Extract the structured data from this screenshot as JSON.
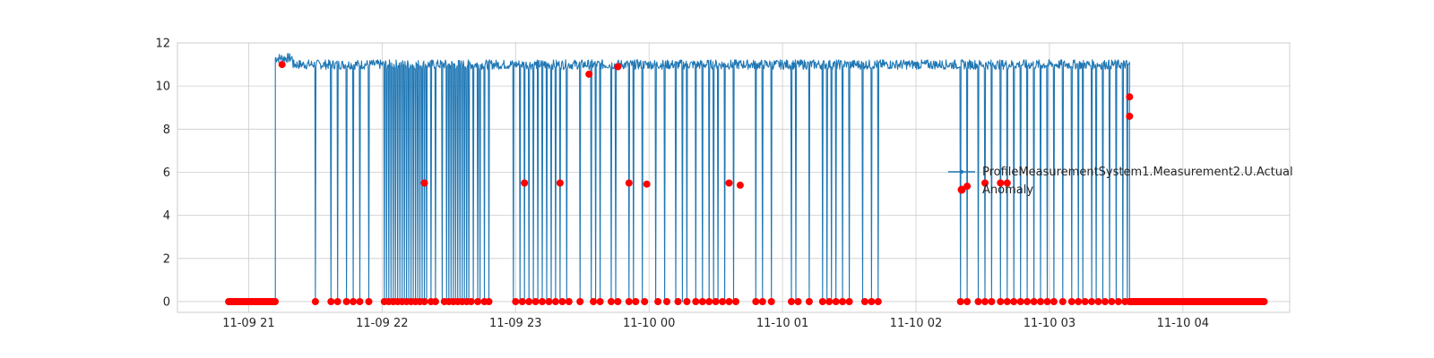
{
  "chart_data": {
    "type": "line",
    "title": "",
    "xlabel": "",
    "ylabel": "",
    "x_axis": {
      "type": "datetime",
      "range": [
        "2024-11-09 20:28",
        "2024-11-10 04:48"
      ],
      "ticks": [
        {
          "value": "2024-11-09 21:00",
          "label": "11-09 21"
        },
        {
          "value": "2024-11-09 22:00",
          "label": "11-09 22"
        },
        {
          "value": "2024-11-09 23:00",
          "label": "11-09 23"
        },
        {
          "value": "2024-11-10 00:00",
          "label": "11-10 00"
        },
        {
          "value": "2024-11-10 01:00",
          "label": "11-10 01"
        },
        {
          "value": "2024-11-10 02:00",
          "label": "11-10 02"
        },
        {
          "value": "2024-11-10 03:00",
          "label": "11-10 03"
        },
        {
          "value": "2024-11-10 04:00",
          "label": "11-10 04"
        }
      ]
    },
    "y_axis": {
      "range": [
        -0.5,
        12
      ],
      "ticks": [
        0,
        2,
        4,
        6,
        8,
        10,
        12
      ]
    },
    "grid": true,
    "legend": {
      "position": "center-right",
      "entries": [
        {
          "label": "ProfileMeasurementSystem1.Measurement2.U.Actual",
          "color": "#1f77b4",
          "marker": "line"
        },
        {
          "label": "Anomaly",
          "color": "#ff0000",
          "marker": "dot"
        }
      ]
    },
    "series": [
      {
        "name": "ProfileMeasurementSystem1.Measurement2.U.Actual",
        "color": "#1f77b4",
        "baseline_start": "2024-11-09 21:12",
        "baseline_end": "2024-11-10 03:36",
        "baseline_level": 11.0,
        "drops_to_zero_at": [
          "2024-11-09 21:30",
          "2024-11-09 21:37",
          "2024-11-09 21:40",
          "2024-11-09 21:44",
          "2024-11-09 21:47",
          "2024-11-09 21:50",
          "2024-11-09 21:54",
          "2024-11-09 22:01",
          "2024-11-09 22:02",
          "2024-11-09 22:03",
          "2024-11-09 22:04",
          "2024-11-09 22:05",
          "2024-11-09 22:06",
          "2024-11-09 22:07",
          "2024-11-09 22:08",
          "2024-11-09 22:09",
          "2024-11-09 22:10",
          "2024-11-09 22:11",
          "2024-11-09 22:12",
          "2024-11-09 22:13",
          "2024-11-09 22:14",
          "2024-11-09 22:15",
          "2024-11-09 22:16",
          "2024-11-09 22:17",
          "2024-11-09 22:18",
          "2024-11-09 22:19",
          "2024-11-09 22:20",
          "2024-11-09 22:22",
          "2024-11-09 22:24",
          "2024-11-09 22:27",
          "2024-11-09 22:29",
          "2024-11-09 22:30",
          "2024-11-09 22:31",
          "2024-11-09 22:32",
          "2024-11-09 22:33",
          "2024-11-09 22:34",
          "2024-11-09 22:35",
          "2024-11-09 22:36",
          "2024-11-09 22:37",
          "2024-11-09 22:38",
          "2024-11-09 22:39",
          "2024-11-09 22:41",
          "2024-11-09 22:43",
          "2024-11-09 22:44",
          "2024-11-09 22:46",
          "2024-11-09 22:48",
          "2024-11-09 22:59",
          "2024-11-09 23:02",
          "2024-11-09 23:04",
          "2024-11-09 23:06",
          "2024-11-09 23:08",
          "2024-11-09 23:10",
          "2024-11-09 23:12",
          "2024-11-09 23:14",
          "2024-11-09 23:16",
          "2024-11-09 23:18",
          "2024-11-09 23:20",
          "2024-11-09 23:23",
          "2024-11-09 23:29",
          "2024-11-09 23:34",
          "2024-11-09 23:36",
          "2024-11-09 23:38",
          "2024-11-09 23:43",
          "2024-11-09 23:45",
          "2024-11-09 23:51",
          "2024-11-09 23:53",
          "2024-11-09 23:57",
          "2024-11-10 00:03",
          "2024-11-10 00:07",
          "2024-11-10 00:12",
          "2024-11-10 00:15",
          "2024-11-10 00:17",
          "2024-11-10 00:21",
          "2024-11-10 00:24",
          "2024-11-10 00:27",
          "2024-11-10 00:29",
          "2024-11-10 00:31",
          "2024-11-10 00:34",
          "2024-11-10 00:38",
          "2024-11-10 00:48",
          "2024-11-10 00:51",
          "2024-11-10 00:55",
          "2024-11-10 01:04",
          "2024-11-10 01:06",
          "2024-11-10 01:12",
          "2024-11-10 01:18",
          "2024-11-10 01:20",
          "2024-11-10 01:22",
          "2024-11-10 01:24",
          "2024-11-10 01:27",
          "2024-11-10 01:30",
          "2024-11-10 01:36",
          "2024-11-10 01:40",
          "2024-11-10 01:43",
          "2024-11-10 02:20",
          "2024-11-10 02:23",
          "2024-11-10 02:28",
          "2024-11-10 02:31",
          "2024-11-10 02:34",
          "2024-11-10 02:38",
          "2024-11-10 02:41",
          "2024-11-10 02:44",
          "2024-11-10 02:47",
          "2024-11-10 02:50",
          "2024-11-10 02:53",
          "2024-11-10 02:56",
          "2024-11-10 02:59",
          "2024-11-10 03:02",
          "2024-11-10 03:06",
          "2024-11-10 03:10",
          "2024-11-10 03:13",
          "2024-11-10 03:15",
          "2024-11-10 03:19",
          "2024-11-10 03:21",
          "2024-11-10 03:24",
          "2024-11-10 03:27",
          "2024-11-10 03:30",
          "2024-11-10 03:33",
          "2024-11-10 03:35"
        ]
      },
      {
        "name": "Anomaly",
        "type": "scatter",
        "color": "#ff0000",
        "zero_runs": [
          [
            "2024-11-09 20:51",
            "2024-11-09 21:12"
          ],
          [
            "2024-11-10 03:36",
            "2024-11-10 04:37"
          ]
        ],
        "points": [
          [
            "2024-11-09 21:15",
            11.0
          ],
          [
            "2024-11-09 22:19",
            5.5
          ],
          [
            "2024-11-09 23:04",
            5.5
          ],
          [
            "2024-11-09 23:20",
            5.5
          ],
          [
            "2024-11-09 23:33",
            10.55
          ],
          [
            "2024-11-09 23:51",
            5.5
          ],
          [
            "2024-11-09 23:46",
            10.9
          ],
          [
            "2024-11-09 23:59",
            5.45
          ],
          [
            "2024-11-10 00:36",
            5.5
          ],
          [
            "2024-11-10 00:41",
            5.4
          ],
          [
            "2024-11-10 02:23",
            5.35
          ],
          [
            "2024-11-10 02:31",
            5.5
          ],
          [
            "2024-11-10 02:38",
            5.5
          ],
          [
            "2024-11-10 02:41",
            5.5
          ],
          [
            "2024-11-10 03:36",
            9.5
          ],
          [
            "2024-11-10 03:36",
            8.6
          ],
          [
            "2024-11-09 21:30",
            0
          ],
          [
            "2024-11-09 21:37",
            0
          ],
          [
            "2024-11-09 21:40",
            0
          ],
          [
            "2024-11-09 21:44",
            0
          ],
          [
            "2024-11-09 21:47",
            0
          ],
          [
            "2024-11-09 21:50",
            0
          ],
          [
            "2024-11-09 21:54",
            0
          ],
          [
            "2024-11-09 22:01",
            0
          ],
          [
            "2024-11-09 22:03",
            0
          ],
          [
            "2024-11-09 22:05",
            0
          ],
          [
            "2024-11-09 22:07",
            0
          ],
          [
            "2024-11-09 22:09",
            0
          ],
          [
            "2024-11-09 22:11",
            0
          ],
          [
            "2024-11-09 22:13",
            0
          ],
          [
            "2024-11-09 22:15",
            0
          ],
          [
            "2024-11-09 22:17",
            0
          ],
          [
            "2024-11-09 22:19",
            0
          ],
          [
            "2024-11-09 22:22",
            0
          ],
          [
            "2024-11-09 22:24",
            0
          ],
          [
            "2024-11-09 22:28",
            0
          ],
          [
            "2024-11-09 22:30",
            0
          ],
          [
            "2024-11-09 22:32",
            0
          ],
          [
            "2024-11-09 22:34",
            0
          ],
          [
            "2024-11-09 22:36",
            0
          ],
          [
            "2024-11-09 22:38",
            0
          ],
          [
            "2024-11-09 22:40",
            0
          ],
          [
            "2024-11-09 22:43",
            0
          ],
          [
            "2024-11-09 22:46",
            0
          ],
          [
            "2024-11-09 22:48",
            0
          ],
          [
            "2024-11-09 23:00",
            0
          ],
          [
            "2024-11-09 23:03",
            0
          ],
          [
            "2024-11-09 23:06",
            0
          ],
          [
            "2024-11-09 23:09",
            0
          ],
          [
            "2024-11-09 23:12",
            0
          ],
          [
            "2024-11-09 23:15",
            0
          ],
          [
            "2024-11-09 23:18",
            0
          ],
          [
            "2024-11-09 23:21",
            0
          ],
          [
            "2024-11-09 23:24",
            0
          ],
          [
            "2024-11-09 23:29",
            0
          ],
          [
            "2024-11-09 23:35",
            0
          ],
          [
            "2024-11-09 23:38",
            0
          ],
          [
            "2024-11-09 23:43",
            0
          ],
          [
            "2024-11-09 23:46",
            0
          ],
          [
            "2024-11-09 23:51",
            0
          ],
          [
            "2024-11-09 23:54",
            0
          ],
          [
            "2024-11-09 23:58",
            0
          ],
          [
            "2024-11-10 00:04",
            0
          ],
          [
            "2024-11-10 00:08",
            0
          ],
          [
            "2024-11-10 00:13",
            0
          ],
          [
            "2024-11-10 00:17",
            0
          ],
          [
            "2024-11-10 00:21",
            0
          ],
          [
            "2024-11-10 00:24",
            0
          ],
          [
            "2024-11-10 00:27",
            0
          ],
          [
            "2024-11-10 00:30",
            0
          ],
          [
            "2024-11-10 00:33",
            0
          ],
          [
            "2024-11-10 00:36",
            0
          ],
          [
            "2024-11-10 00:39",
            0
          ],
          [
            "2024-11-10 00:48",
            0
          ],
          [
            "2024-11-10 00:51",
            0
          ],
          [
            "2024-11-10 00:55",
            0
          ],
          [
            "2024-11-10 01:04",
            0
          ],
          [
            "2024-11-10 01:07",
            0
          ],
          [
            "2024-11-10 01:12",
            0
          ],
          [
            "2024-11-10 01:18",
            0
          ],
          [
            "2024-11-10 01:21",
            0
          ],
          [
            "2024-11-10 01:24",
            0
          ],
          [
            "2024-11-10 01:27",
            0
          ],
          [
            "2024-11-10 01:30",
            0
          ],
          [
            "2024-11-10 01:37",
            0
          ],
          [
            "2024-11-10 01:40",
            0
          ],
          [
            "2024-11-10 01:43",
            0
          ],
          [
            "2024-11-10 02:20",
            0
          ],
          [
            "2024-11-10 02:23",
            0
          ],
          [
            "2024-11-10 02:28",
            0
          ],
          [
            "2024-11-10 02:31",
            0
          ],
          [
            "2024-11-10 02:34",
            0
          ],
          [
            "2024-11-10 02:38",
            0
          ],
          [
            "2024-11-10 02:41",
            0
          ],
          [
            "2024-11-10 02:44",
            0
          ],
          [
            "2024-11-10 02:47",
            0
          ],
          [
            "2024-11-10 02:50",
            0
          ],
          [
            "2024-11-10 02:53",
            0
          ],
          [
            "2024-11-10 02:56",
            0
          ],
          [
            "2024-11-10 02:59",
            0
          ],
          [
            "2024-11-10 03:02",
            0
          ],
          [
            "2024-11-10 03:06",
            0
          ],
          [
            "2024-11-10 03:10",
            0
          ],
          [
            "2024-11-10 03:13",
            0
          ],
          [
            "2024-11-10 03:16",
            0
          ],
          [
            "2024-11-10 03:19",
            0
          ],
          [
            "2024-11-10 03:22",
            0
          ],
          [
            "2024-11-10 03:25",
            0
          ],
          [
            "2024-11-10 03:28",
            0
          ],
          [
            "2024-11-10 03:31",
            0
          ],
          [
            "2024-11-10 03:34",
            0
          ]
        ]
      }
    ]
  }
}
